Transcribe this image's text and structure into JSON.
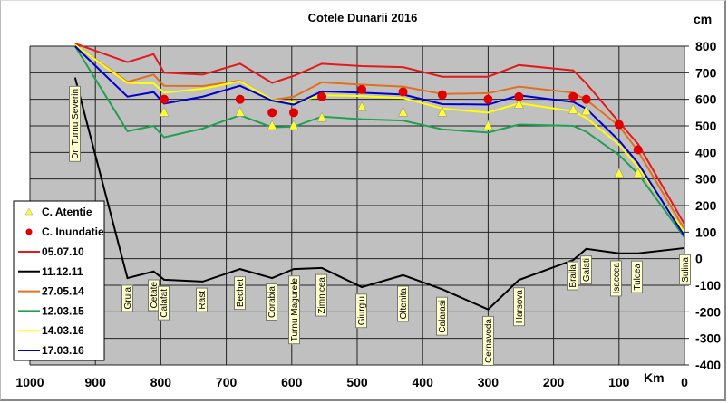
{
  "chart_data": {
    "type": "line",
    "title": "Cotele Dunarii 2016",
    "xlabel": "Km",
    "ylabel": "cm",
    "xlim": [
      1000,
      0
    ],
    "ylim": [
      -400,
      800
    ],
    "x_ticks": [
      1000,
      900,
      800,
      700,
      600,
      500,
      400,
      300,
      200,
      100,
      0
    ],
    "y_ticks": [
      800,
      700,
      600,
      500,
      400,
      300,
      200,
      100,
      0,
      -100,
      -200,
      -300,
      -400
    ],
    "grid": true,
    "legend_position": "left",
    "stations": [
      {
        "name": "Dr. Turnu Severin",
        "km": 931
      },
      {
        "name": "Gruia",
        "km": 851
      },
      {
        "name": "Cetate",
        "km": 811
      },
      {
        "name": "Calafat",
        "km": 795
      },
      {
        "name": "Rast",
        "km": 736
      },
      {
        "name": "Bechet",
        "km": 679
      },
      {
        "name": "Corabia",
        "km": 630
      },
      {
        "name": "Turnu Magurele",
        "km": 597
      },
      {
        "name": "Zimnicea",
        "km": 554
      },
      {
        "name": "Giurgiu",
        "km": 493
      },
      {
        "name": "Oltenita",
        "km": 430
      },
      {
        "name": "Calarasi",
        "km": 370
      },
      {
        "name": "Cernavoda",
        "km": 300
      },
      {
        "name": "Harsova",
        "km": 253
      },
      {
        "name": "Braila",
        "km": 170
      },
      {
        "name": "Galati",
        "km": 150
      },
      {
        "name": "Isaccea",
        "km": 100
      },
      {
        "name": "Tulcea",
        "km": 71
      },
      {
        "name": "Sulina",
        "km": 0
      }
    ],
    "x": [
      931,
      851,
      811,
      795,
      736,
      679,
      630,
      597,
      554,
      493,
      430,
      370,
      300,
      253,
      170,
      150,
      100,
      71,
      0
    ],
    "series": [
      {
        "name": "05.07.10",
        "color": "#e31a1c",
        "values": [
          810,
          740,
          770,
          700,
          693,
          734,
          662,
          688,
          734,
          725,
          721,
          685,
          685,
          729,
          709,
          660,
          514,
          432,
          130
        ]
      },
      {
        "name": "11.12.11",
        "color": "#000000",
        "values": [
          682,
          -73,
          -48,
          -79,
          -86,
          -39,
          -73,
          -39,
          -35,
          -107,
          -62,
          -115,
          -191,
          -80,
          -5,
          37,
          20,
          20,
          40
        ]
      },
      {
        "name": "27.05.14",
        "color": "#e07020",
        "values": [
          805,
          666,
          693,
          651,
          650,
          670,
          597,
          610,
          664,
          655,
          648,
          620,
          623,
          648,
          625,
          598,
          500,
          405,
          110
        ]
      },
      {
        "name": "12.03.15",
        "color": "#20a050",
        "values": [
          800,
          480,
          500,
          457,
          490,
          540,
          495,
          497,
          535,
          525,
          520,
          487,
          475,
          505,
          500,
          478,
          390,
          320,
          80
        ]
      },
      {
        "name": "14.03.16",
        "color": "#ffff00",
        "values": [
          805,
          662,
          660,
          625,
          640,
          668,
          598,
          588,
          615,
          612,
          605,
          565,
          550,
          585,
          555,
          530,
          430,
          345,
          100
        ]
      },
      {
        "name": "17.03.16",
        "color": "#0000cc",
        "values": [
          800,
          610,
          627,
          584,
          610,
          651,
          595,
          580,
          630,
          625,
          618,
          582,
          580,
          615,
          590,
          565,
          445,
          360,
          85
        ]
      }
    ],
    "markers": [
      {
        "name": "C. Atentie",
        "shape": "triangle",
        "color": "#ffff33",
        "points": [
          [
            795,
            550
          ],
          [
            679,
            550
          ],
          [
            630,
            500
          ],
          [
            597,
            500
          ],
          [
            554,
            530
          ],
          [
            493,
            570
          ],
          [
            430,
            550
          ],
          [
            370,
            550
          ],
          [
            300,
            500
          ],
          [
            253,
            580
          ],
          [
            170,
            560
          ],
          [
            150,
            555
          ],
          [
            100,
            320
          ],
          [
            71,
            320
          ]
        ]
      },
      {
        "name": "C. Inundatie",
        "shape": "circle",
        "color": "#e00000",
        "points": [
          [
            795,
            600
          ],
          [
            679,
            600
          ],
          [
            630,
            550
          ],
          [
            597,
            550
          ],
          [
            554,
            610
          ],
          [
            493,
            637
          ],
          [
            430,
            628
          ],
          [
            370,
            617
          ],
          [
            300,
            600
          ],
          [
            253,
            610
          ],
          [
            170,
            610
          ],
          [
            150,
            600
          ],
          [
            100,
            505
          ],
          [
            71,
            410
          ]
        ]
      }
    ]
  }
}
